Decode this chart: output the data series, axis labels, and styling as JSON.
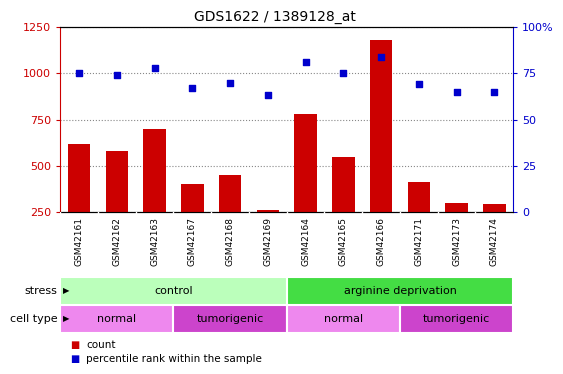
{
  "title": "GDS1622 / 1389128_at",
  "samples": [
    "GSM42161",
    "GSM42162",
    "GSM42163",
    "GSM42167",
    "GSM42168",
    "GSM42169",
    "GSM42164",
    "GSM42165",
    "GSM42166",
    "GSM42171",
    "GSM42173",
    "GSM42174"
  ],
  "counts": [
    620,
    580,
    700,
    400,
    450,
    260,
    780,
    550,
    1180,
    410,
    300,
    295
  ],
  "percentile_ranks": [
    75,
    74,
    78,
    67,
    70,
    63,
    81,
    75,
    84,
    69,
    65,
    65
  ],
  "count_color": "#cc0000",
  "percentile_color": "#0000cc",
  "ylim_left": [
    250,
    1250
  ],
  "ylim_right": [
    0,
    100
  ],
  "yticks_left": [
    250,
    500,
    750,
    1000,
    1250
  ],
  "yticks_right": [
    0,
    25,
    50,
    75,
    100
  ],
  "ytick_labels_right": [
    "0",
    "25",
    "50",
    "75",
    "100%"
  ],
  "stress_groups": [
    {
      "label": "control",
      "start": 0,
      "end": 6,
      "color": "#bbffbb"
    },
    {
      "label": "arginine deprivation",
      "start": 6,
      "end": 12,
      "color": "#44dd44"
    }
  ],
  "celltype_groups": [
    {
      "label": "normal",
      "start": 0,
      "end": 3,
      "color": "#ee88ee"
    },
    {
      "label": "tumorigenic",
      "start": 3,
      "end": 6,
      "color": "#cc44cc"
    },
    {
      "label": "normal",
      "start": 6,
      "end": 9,
      "color": "#ee88ee"
    },
    {
      "label": "tumorigenic",
      "start": 9,
      "end": 12,
      "color": "#cc44cc"
    }
  ],
  "xlabel_stress": "stress",
  "xlabel_celltype": "cell type",
  "legend_count": "count",
  "legend_percentile": "percentile rank within the sample",
  "background_color": "#ffffff",
  "plot_bg_color": "#ffffff",
  "grid_color": "#888888",
  "bar_width": 0.6,
  "sample_bg_color": "#cccccc",
  "sample_divider_color": "#ffffff"
}
